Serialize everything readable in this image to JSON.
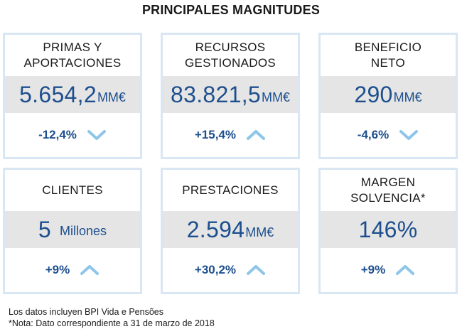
{
  "title": "PRINCIPALES MAGNITUDES",
  "cards": [
    {
      "label_line1": "PRIMAS Y",
      "label_line2": "APORTACIONES",
      "value": "5.654,2",
      "unit": "MM€",
      "change": "-12,4%",
      "trend": "down",
      "trend_icon": "chevron-down-icon"
    },
    {
      "label_line1": "RECURSOS",
      "label_line2": "GESTIONADOS",
      "value": "83.821,5",
      "unit": "MM€",
      "change": "+15,4%",
      "trend": "up",
      "trend_icon": "chevron-up-icon"
    },
    {
      "label_line1": "BENEFICIO",
      "label_line2": "NETO",
      "value": "290",
      "unit": "MM€",
      "change": "-4,6%",
      "trend": "down",
      "trend_icon": "chevron-down-icon"
    },
    {
      "label_line1": "CLIENTES",
      "label_line2": "",
      "value": "5",
      "unit": "Millones",
      "change": "+9%",
      "trend": "up",
      "trend_icon": "chevron-up-icon"
    },
    {
      "label_line1": "PRESTACIONES",
      "label_line2": "",
      "value": "2.594",
      "unit": "MM€",
      "change": "+30,2%",
      "trend": "up",
      "trend_icon": "chevron-up-icon"
    },
    {
      "label_line1": "MARGEN",
      "label_line2": "SOLVENCIA*",
      "value": "146%",
      "unit": "",
      "change": "+9%",
      "trend": "up",
      "trend_icon": "chevron-up-icon"
    }
  ],
  "notes": {
    "line1": "Los datos incluyen BPI Vida e Pensões",
    "line2": "*Nota: Dato correspondiente a 31 de marzo de 2018"
  },
  "colors": {
    "value_blue": "#1d4f8e",
    "border": "#d9e6f3",
    "band_gray": "#e5e5e5",
    "arrow_blue": "#8ec6ea"
  }
}
